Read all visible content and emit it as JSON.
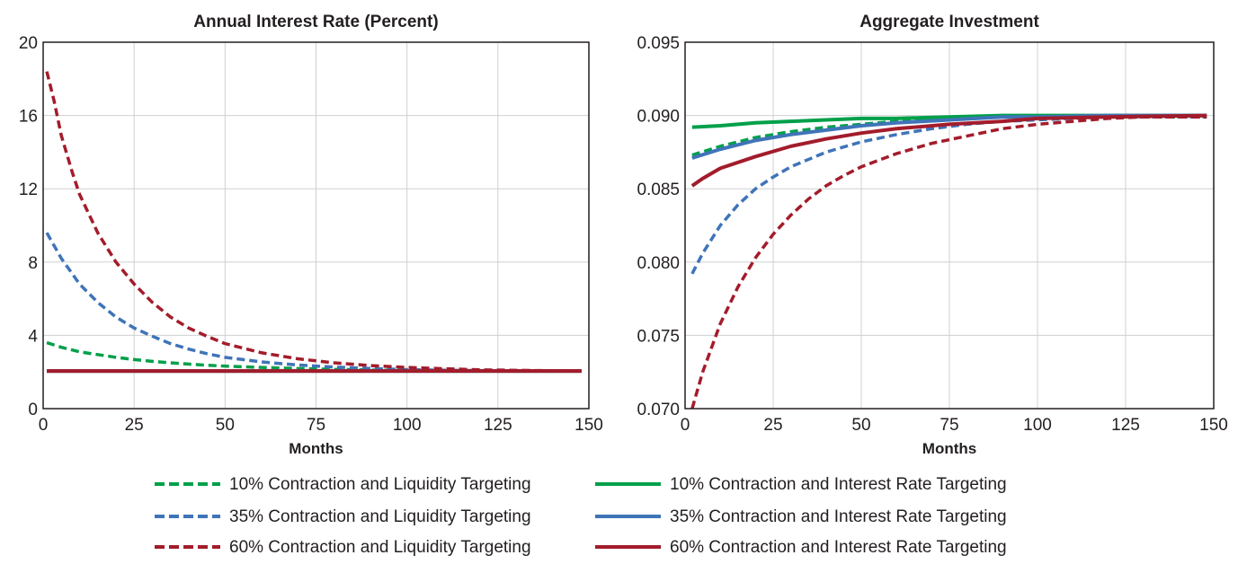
{
  "chart_data": [
    {
      "type": "line",
      "title": "Annual Interest Rate (Percent)",
      "xlabel": "Months",
      "ylabel": "",
      "xlim": [
        0,
        150
      ],
      "ylim": [
        0,
        20
      ],
      "x_ticks": [
        0,
        25,
        50,
        75,
        100,
        125,
        150
      ],
      "y_ticks": [
        0,
        4,
        8,
        12,
        16,
        20
      ],
      "y_tick_labels": [
        "0",
        "4",
        "8",
        "12",
        "16",
        "20"
      ],
      "x_tick_labels": [
        "0",
        "25",
        "50",
        "75",
        "100",
        "125",
        "150"
      ],
      "grid": true,
      "series": [
        {
          "name": "10% Contraction and Liquidity Targeting",
          "color": "#00a04a",
          "style": "dashed",
          "x": [
            1,
            5,
            10,
            15,
            20,
            25,
            30,
            35,
            40,
            45,
            50,
            60,
            70,
            80,
            90,
            100,
            110,
            120,
            130,
            140,
            148
          ],
          "y": [
            3.6,
            3.35,
            3.1,
            2.95,
            2.8,
            2.68,
            2.58,
            2.5,
            2.43,
            2.37,
            2.32,
            2.25,
            2.19,
            2.14,
            2.11,
            2.09,
            2.07,
            2.06,
            2.05,
            2.05,
            2.05
          ]
        },
        {
          "name": "10% Contraction and Interest Rate Targeting",
          "color": "#00a04a",
          "style": "solid",
          "x": [
            1,
            148
          ],
          "y": [
            2.05,
            2.05
          ]
        },
        {
          "name": "35% Contraction and Liquidity Targeting",
          "color": "#3f74b8",
          "style": "dashed",
          "x": [
            1,
            5,
            10,
            15,
            20,
            25,
            30,
            35,
            40,
            45,
            50,
            60,
            70,
            80,
            90,
            100,
            110,
            120,
            130,
            140,
            148
          ],
          "y": [
            9.6,
            8.2,
            6.8,
            5.8,
            5.0,
            4.4,
            3.95,
            3.55,
            3.25,
            3.0,
            2.8,
            2.55,
            2.38,
            2.27,
            2.19,
            2.13,
            2.1,
            2.08,
            2.06,
            2.05,
            2.05
          ]
        },
        {
          "name": "35% Contraction and Interest Rate Targeting",
          "color": "#3f74b8",
          "style": "solid",
          "x": [
            1,
            148
          ],
          "y": [
            2.05,
            2.05
          ]
        },
        {
          "name": "60% Contraction and Liquidity Targeting",
          "color": "#a31c2b",
          "style": "dashed",
          "x": [
            1,
            3,
            5,
            8,
            10,
            15,
            20,
            25,
            30,
            35,
            40,
            45,
            50,
            60,
            70,
            80,
            90,
            100,
            110,
            120,
            130,
            140,
            148
          ],
          "y": [
            18.4,
            16.8,
            14.9,
            12.9,
            11.7,
            9.6,
            8.0,
            6.8,
            5.8,
            5.0,
            4.4,
            3.95,
            3.55,
            3.05,
            2.72,
            2.5,
            2.35,
            2.25,
            2.18,
            2.12,
            2.09,
            2.07,
            2.06
          ]
        },
        {
          "name": "60% Contraction and Interest Rate Targeting",
          "color": "#a31c2b",
          "style": "solid",
          "x": [
            1,
            148
          ],
          "y": [
            2.05,
            2.05
          ]
        }
      ]
    },
    {
      "type": "line",
      "title": "Aggregate Investment",
      "xlabel": "Months",
      "ylabel": "",
      "xlim": [
        0,
        150
      ],
      "ylim": [
        0.07,
        0.095
      ],
      "x_ticks": [
        0,
        25,
        50,
        75,
        100,
        125,
        150
      ],
      "y_ticks": [
        0.07,
        0.075,
        0.08,
        0.085,
        0.09,
        0.095
      ],
      "y_tick_labels": [
        "0.070",
        "0.075",
        "0.080",
        "0.085",
        "0.090",
        "0.095"
      ],
      "x_tick_labels": [
        "0",
        "25",
        "50",
        "75",
        "100",
        "125",
        "150"
      ],
      "grid": true,
      "series": [
        {
          "name": "10% Contraction and Liquidity Targeting",
          "color": "#00a04a",
          "style": "dashed",
          "x": [
            2,
            10,
            20,
            30,
            40,
            50,
            60,
            75,
            90,
            100,
            120,
            148
          ],
          "y": [
            0.0873,
            0.0879,
            0.0885,
            0.0889,
            0.0892,
            0.0894,
            0.0896,
            0.0898,
            0.0899,
            0.0899,
            0.0899,
            0.0899
          ]
        },
        {
          "name": "10% Contraction and Interest Rate Targeting",
          "color": "#00a04a",
          "style": "solid",
          "x": [
            2,
            10,
            20,
            30,
            40,
            50,
            60,
            75,
            90,
            100,
            120,
            148
          ],
          "y": [
            0.0892,
            0.0893,
            0.0895,
            0.0896,
            0.0897,
            0.0898,
            0.0898,
            0.0899,
            0.09,
            0.09,
            0.09,
            0.09
          ]
        },
        {
          "name": "35% Contraction and Liquidity Targeting",
          "color": "#3f74b8",
          "style": "dashed",
          "x": [
            2,
            5,
            10,
            15,
            20,
            25,
            30,
            35,
            40,
            50,
            60,
            70,
            80,
            90,
            100,
            120,
            148
          ],
          "y": [
            0.0792,
            0.0806,
            0.0825,
            0.0839,
            0.085,
            0.0858,
            0.0865,
            0.087,
            0.0875,
            0.0882,
            0.0887,
            0.0891,
            0.0894,
            0.0896,
            0.0897,
            0.0899,
            0.0899
          ]
        },
        {
          "name": "35% Contraction and Interest Rate Targeting",
          "color": "#3f74b8",
          "style": "solid",
          "x": [
            2,
            10,
            20,
            30,
            40,
            50,
            60,
            75,
            90,
            100,
            120,
            148
          ],
          "y": [
            0.0871,
            0.0877,
            0.0883,
            0.0887,
            0.089,
            0.0893,
            0.0895,
            0.0897,
            0.0899,
            0.0899,
            0.09,
            0.09
          ]
        },
        {
          "name": "60% Contraction and Liquidity Targeting",
          "color": "#a31c2b",
          "style": "dashed",
          "x": [
            2,
            5,
            10,
            15,
            20,
            25,
            30,
            35,
            40,
            45,
            50,
            60,
            70,
            80,
            90,
            100,
            110,
            120,
            130,
            148
          ],
          "y": [
            0.07,
            0.0725,
            0.0758,
            0.0783,
            0.0803,
            0.0819,
            0.0832,
            0.0843,
            0.0852,
            0.0859,
            0.0865,
            0.0874,
            0.0881,
            0.0886,
            0.0891,
            0.0894,
            0.0896,
            0.0898,
            0.0899,
            0.0899
          ]
        },
        {
          "name": "60% Contraction and Interest Rate Targeting",
          "color": "#a31c2b",
          "style": "solid",
          "x": [
            2,
            5,
            10,
            20,
            30,
            40,
            50,
            60,
            75,
            90,
            100,
            120,
            148
          ],
          "y": [
            0.0852,
            0.0857,
            0.0864,
            0.0872,
            0.0879,
            0.0884,
            0.0888,
            0.0891,
            0.0894,
            0.0896,
            0.0898,
            0.0899,
            0.09
          ]
        }
      ]
    }
  ],
  "legend": {
    "placement": "bottom",
    "entries": [
      {
        "label": "10% Contraction and Liquidity Targeting",
        "color": "#00a04a",
        "style": "dashed"
      },
      {
        "label": "10% Contraction and Interest Rate Targeting",
        "color": "#00a04a",
        "style": "solid"
      },
      {
        "label": "35% Contraction and Liquidity Targeting",
        "color": "#3f74b8",
        "style": "dashed"
      },
      {
        "label": "35% Contraction and Interest Rate Targeting",
        "color": "#3f74b8",
        "style": "solid"
      },
      {
        "label": "60% Contraction and Liquidity Targeting",
        "color": "#a31c2b",
        "style": "dashed"
      },
      {
        "label": "60% Contraction and Interest Rate Targeting",
        "color": "#a31c2b",
        "style": "solid"
      }
    ]
  }
}
